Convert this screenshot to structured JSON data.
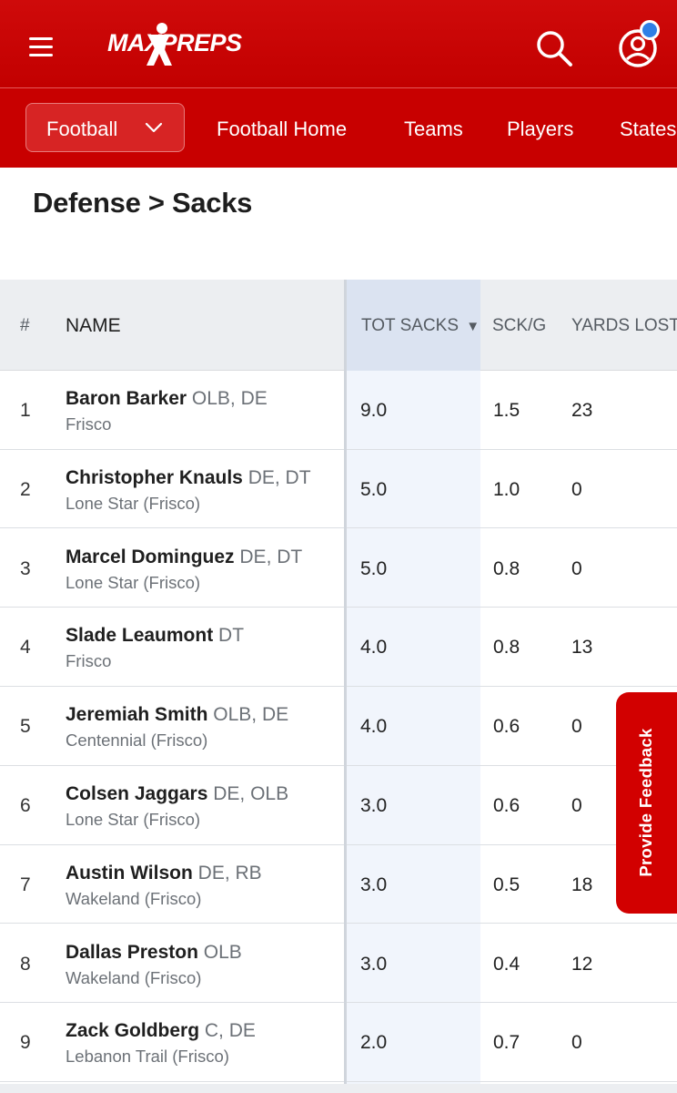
{
  "brand": {
    "logo_text": "MAXPREPS",
    "primary_color": "#c80000",
    "accent_dot_color": "#2f7fe6"
  },
  "header": {
    "menu_icon": "hamburger-icon",
    "search_icon": "search-icon",
    "account_icon": "user-icon"
  },
  "subnav": {
    "sport_select": "Football",
    "links": [
      "Football Home",
      "Teams",
      "Players",
      "States"
    ]
  },
  "page_title": "Defense > Sacks",
  "table": {
    "columns": {
      "rank": "#",
      "name": "NAME",
      "tot_sacks": "TOT SACKS",
      "sort_indicator": "▼",
      "sck_g": "SCK/G",
      "yards_lost": "YARDS LOST"
    },
    "rows": [
      {
        "rank": "1",
        "name": "Baron Barker",
        "pos": "OLB, DE",
        "school": "Frisco",
        "tot": "9.0",
        "sckg": "1.5",
        "yds": "23"
      },
      {
        "rank": "2",
        "name": "Christopher Knauls",
        "pos": "DE, DT",
        "school": "Lone Star (Frisco)",
        "tot": "5.0",
        "sckg": "1.0",
        "yds": "0"
      },
      {
        "rank": "3",
        "name": "Marcel Dominguez",
        "pos": "DE, DT",
        "school": "Lone Star (Frisco)",
        "tot": "5.0",
        "sckg": "0.8",
        "yds": "0"
      },
      {
        "rank": "4",
        "name": "Slade Leaumont",
        "pos": "DT",
        "school": "Frisco",
        "tot": "4.0",
        "sckg": "0.8",
        "yds": "13"
      },
      {
        "rank": "5",
        "name": "Jeremiah Smith",
        "pos": "OLB, DE",
        "school": "Centennial (Frisco)",
        "tot": "4.0",
        "sckg": "0.6",
        "yds": "0"
      },
      {
        "rank": "6",
        "name": "Colsen Jaggars",
        "pos": "DE, OLB",
        "school": "Lone Star (Frisco)",
        "tot": "3.0",
        "sckg": "0.6",
        "yds": "0"
      },
      {
        "rank": "7",
        "name": "Austin Wilson",
        "pos": "DE, RB",
        "school": "Wakeland (Frisco)",
        "tot": "3.0",
        "sckg": "0.5",
        "yds": "18"
      },
      {
        "rank": "8",
        "name": "Dallas Preston",
        "pos": "OLB",
        "school": "Wakeland (Frisco)",
        "tot": "3.0",
        "sckg": "0.4",
        "yds": "12"
      },
      {
        "rank": "9",
        "name": "Zack Goldberg",
        "pos": "C, DE",
        "school": "Lebanon Trail (Frisco)",
        "tot": "2.0",
        "sckg": "0.7",
        "yds": "0"
      }
    ]
  },
  "feedback_tab": "Provide Feedback"
}
